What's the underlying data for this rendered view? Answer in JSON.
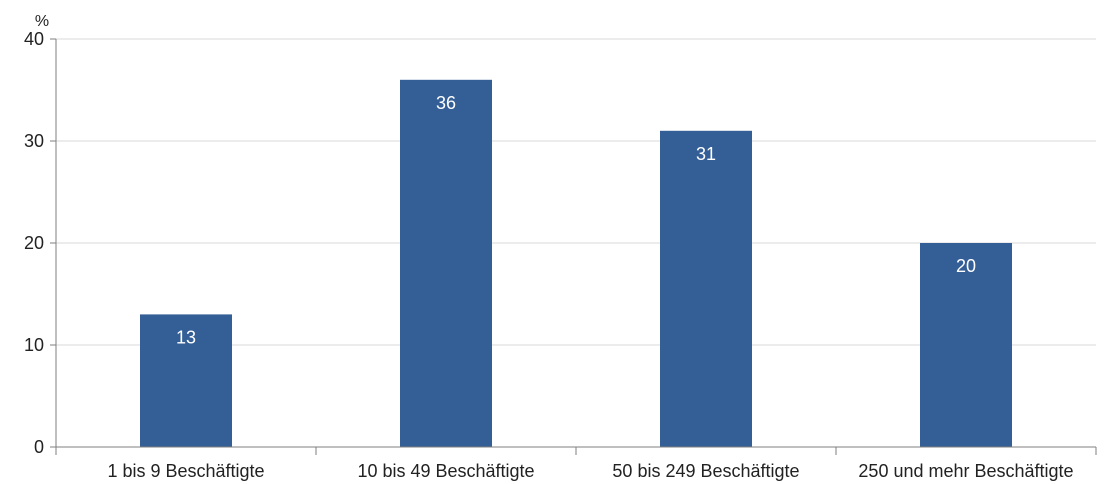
{
  "chart_data": {
    "type": "bar",
    "ylabel": "%",
    "categories": [
      "1 bis 9 Beschäftigte",
      "10 bis 49 Beschäftigte",
      "50 bis 249 Beschäftigte",
      "250 und mehr Beschäftigte"
    ],
    "values": [
      13,
      36,
      31,
      20
    ],
    "value_labels": [
      "13",
      "36",
      "31",
      "20"
    ],
    "ylim": [
      0,
      40
    ],
    "yticks": [
      0,
      10,
      20,
      30,
      40
    ],
    "grid": true,
    "legend": "none",
    "colors": {
      "bar": "#335f96"
    }
  }
}
